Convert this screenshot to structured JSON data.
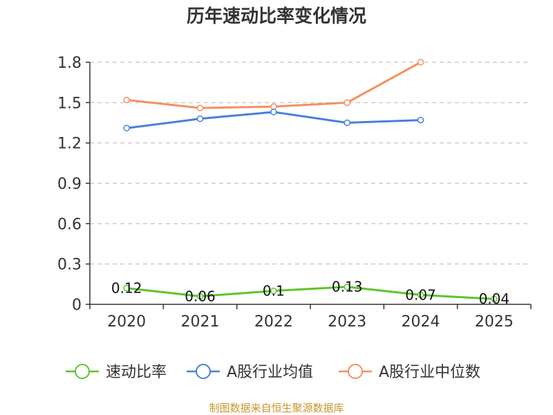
{
  "chart_data": {
    "type": "line",
    "title": "历年速动比率变化情况",
    "categories": [
      "2020",
      "2021",
      "2022",
      "2023",
      "2024",
      "2025"
    ],
    "y_ticks": [
      "0",
      "0.3",
      "0.6",
      "0.9",
      "1.2",
      "1.5",
      "1.8"
    ],
    "ylim": [
      0,
      1.8
    ],
    "grid": true,
    "legend_position": "bottom",
    "series": [
      {
        "name": "速动比率",
        "color": "#5dc42a",
        "values": [
          0.12,
          0.06,
          0.1,
          0.13,
          0.07,
          0.04
        ],
        "labels": [
          "0.12",
          "0.06",
          "0.1",
          "0.13",
          "0.07",
          "0.04"
        ]
      },
      {
        "name": "A股行业均值",
        "color": "#4a7fd8",
        "values": [
          1.31,
          1.38,
          1.43,
          1.35,
          1.37,
          null
        ]
      },
      {
        "name": "A股行业中位数",
        "color": "#f59060",
        "values": [
          1.52,
          1.46,
          1.47,
          1.5,
          1.8,
          null
        ]
      }
    ]
  },
  "footer": "制图数据来自恒生聚源数据库"
}
